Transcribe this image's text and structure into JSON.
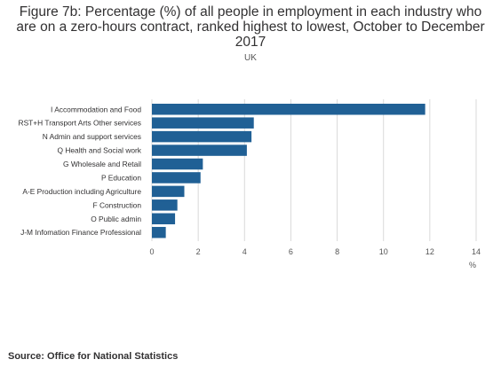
{
  "chart_data": {
    "type": "bar",
    "orientation": "horizontal",
    "title": "Figure 7b: Percentage (%) of all people in employment in each industry who are on a zero-hours contract, ranked highest to lowest, October to December 2017",
    "subtitle": "UK",
    "xlabel": "%",
    "ylabel": "",
    "categories": [
      "I Accommodation and Food",
      "RST+H Transport Arts Other services",
      "N Admin and support services",
      "Q Health and Social work",
      "G Wholesale and Retail",
      "P Education",
      "A-E Production including Agriculture",
      "F Construction",
      "O Public admin",
      "J-M Infomation Finance Professional"
    ],
    "values": [
      11.8,
      4.4,
      4.3,
      4.1,
      2.2,
      2.1,
      1.4,
      1.1,
      1.0,
      0.6
    ],
    "xlim": [
      0,
      14
    ],
    "xticks": [
      "0",
      "2",
      "4",
      "6",
      "8",
      "10",
      "12",
      "14"
    ],
    "grid": true,
    "bar_color": "#206095",
    "grid_color": "#d9d9d9"
  },
  "footer": {
    "source": "Source: Office for National Statistics"
  }
}
